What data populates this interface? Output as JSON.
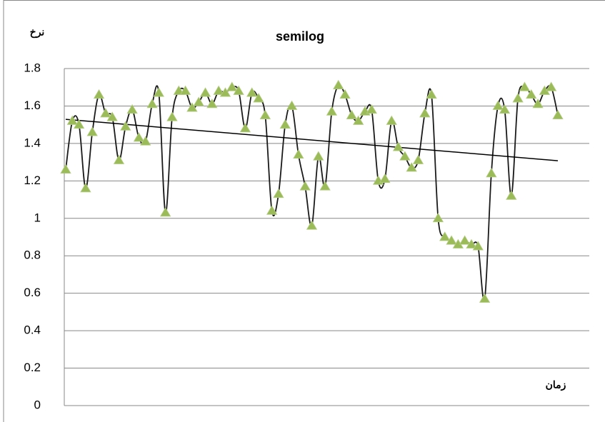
{
  "chart_data": {
    "type": "line",
    "title": "semilog",
    "y_label": "نرخ",
    "x_label": "زمان",
    "series": [
      {
        "color": "#9bbb59",
        "line_color": "#1a1a1a",
        "marker": "triangle",
        "values": [
          1.26,
          1.52,
          1.5,
          1.16,
          1.46,
          1.66,
          1.56,
          1.54,
          1.31,
          1.49,
          1.58,
          1.43,
          1.41,
          1.61,
          1.67,
          1.03,
          1.54,
          1.68,
          1.68,
          1.59,
          1.62,
          1.67,
          1.61,
          1.68,
          1.67,
          1.7,
          1.68,
          1.48,
          1.67,
          1.64,
          1.55,
          1.04,
          1.13,
          1.5,
          1.6,
          1.34,
          1.17,
          0.96,
          1.33,
          1.17,
          1.57,
          1.71,
          1.66,
          1.55,
          1.52,
          1.57,
          1.58,
          1.2,
          1.21,
          1.52,
          1.38,
          1.33,
          1.27,
          1.31,
          1.56,
          1.66,
          1.0,
          0.9,
          0.88,
          0.86,
          0.88,
          0.86,
          0.85,
          0.57,
          1.24,
          1.6,
          1.58,
          1.12,
          1.64,
          1.7,
          1.66,
          1.61,
          1.68,
          1.7,
          1.55
        ]
      }
    ],
    "trendline": "linear",
    "ylim": [
      0,
      1.8
    ],
    "yticks": [
      0,
      0.2,
      0.4,
      0.6,
      0.8,
      1,
      1.2,
      1.4,
      1.6,
      1.8
    ],
    "grid": true
  }
}
